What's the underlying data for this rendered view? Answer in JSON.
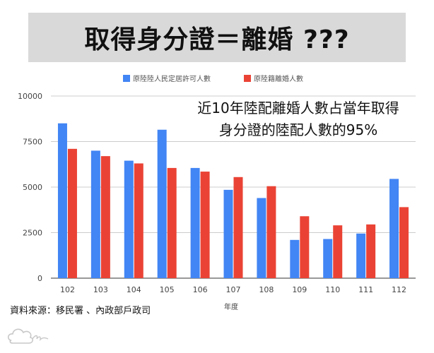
{
  "banner": {
    "title": "取得身分證＝離婚 ???"
  },
  "annotation": {
    "line1": "近10年陸配離婚人數占當年取得",
    "line2": "身分證的陸配人數的95%"
  },
  "source": "資料來源：移民署 、內政部戶政司",
  "logo": {
    "icon": "cloud-signature-logo"
  },
  "chart_data": {
    "type": "bar",
    "categories": [
      "102",
      "103",
      "104",
      "105",
      "106",
      "107",
      "108",
      "109",
      "110",
      "111",
      "112"
    ],
    "series": [
      {
        "name": "原陸陸人民定居許可人數",
        "color": "#4285f4",
        "values": [
          8500,
          7000,
          6450,
          8150,
          6050,
          4850,
          4400,
          2100,
          2150,
          2450,
          5450
        ]
      },
      {
        "name": "原陸籍離婚人數",
        "color": "#ea4335",
        "values": [
          7100,
          6700,
          6300,
          6050,
          5850,
          5550,
          5050,
          3400,
          2900,
          2950,
          3900
        ]
      }
    ],
    "xlabel": "年度",
    "ylabel": "",
    "ylim": [
      0,
      10000
    ],
    "yticks": [
      "0",
      "2500",
      "5000",
      "7500",
      "10000"
    ],
    "ytick_values": [
      0,
      2500,
      5000,
      7500,
      10000
    ],
    "grid": true,
    "legend_position": "top-center"
  }
}
